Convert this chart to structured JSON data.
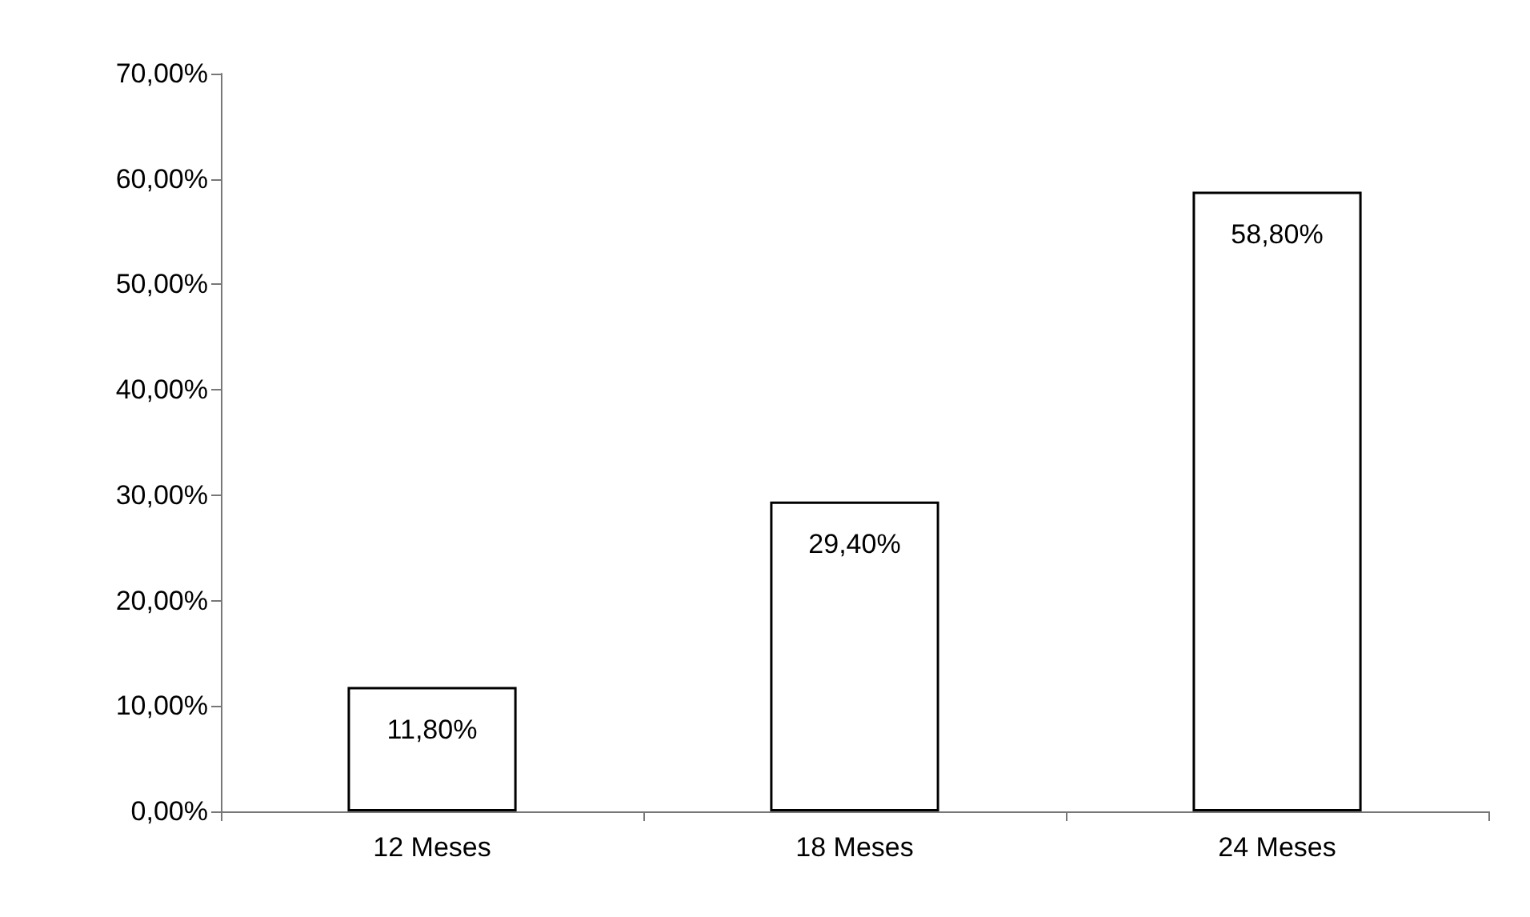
{
  "chart_data": {
    "type": "bar",
    "categories": [
      "12 Meses",
      "18 Meses",
      "24 Meses"
    ],
    "values": [
      11.8,
      29.4,
      58.8
    ],
    "color": "#ffffff",
    "value_labels": [
      "11,80%",
      "29,40%",
      "58,80%"
    ],
    "ylim": [
      0,
      70
    ],
    "yticks": [
      {
        "value": 0,
        "label": "0,00%"
      },
      {
        "value": 10,
        "label": "10,00%"
      },
      {
        "value": 20,
        "label": "20,00%"
      },
      {
        "value": 30,
        "label": "30,00%"
      },
      {
        "value": 40,
        "label": "40,00%"
      },
      {
        "value": 50,
        "label": "50,00%"
      },
      {
        "value": 60,
        "label": "60,00%"
      },
      {
        "value": 70,
        "label": "70,00%"
      }
    ],
    "grid": false
  }
}
